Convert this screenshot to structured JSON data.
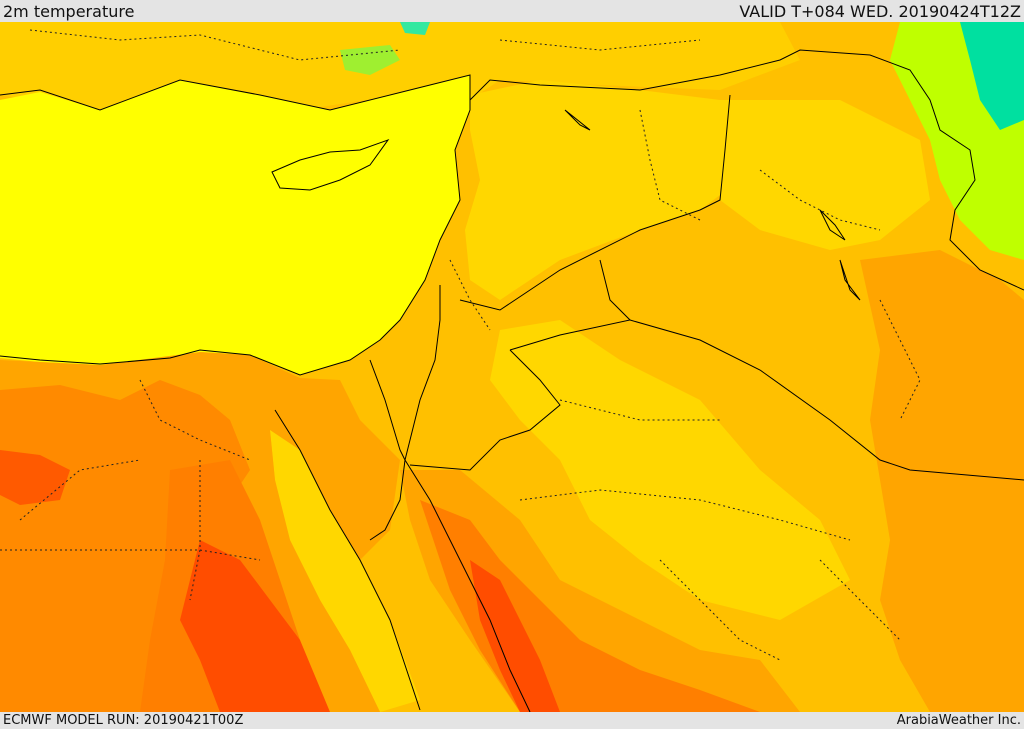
{
  "header": {
    "title": "2m temperature",
    "valid": "VALID T+084 WED. 20190424T12Z"
  },
  "footer": {
    "model_run": "ECMWF MODEL RUN: 20190421T00Z",
    "credit": "ArabiaWeather Inc."
  },
  "colors": {
    "sea_yellow": "#ffff00",
    "pale_orange": "#ffd700",
    "light_orange": "#ffc000",
    "orange": "#ffa500",
    "dark_orange": "#ff7f00",
    "red_orange": "#ff4d00",
    "green": "#bfff00",
    "cyan": "#00e0b0"
  }
}
